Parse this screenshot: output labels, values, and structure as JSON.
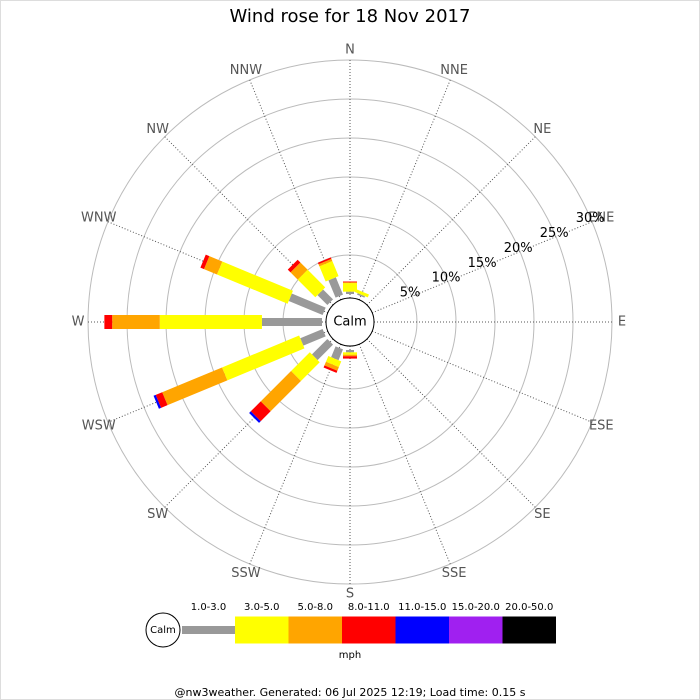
{
  "chart_data": {
    "type": "rose",
    "title": "Wind rose for 18 Nov 2017",
    "calm_label": "Calm",
    "directions": [
      "N",
      "NNE",
      "NE",
      "ENE",
      "E",
      "ESE",
      "SE",
      "SSE",
      "S",
      "SSW",
      "SW",
      "WSW",
      "W",
      "WNW",
      "NW",
      "NNW"
    ],
    "rlim": [
      0,
      30
    ],
    "rticks": [
      {
        "value": 5,
        "label": "5%"
      },
      {
        "value": 10,
        "label": "10%"
      },
      {
        "value": 15,
        "label": "15%"
      },
      {
        "value": 20,
        "label": "20%"
      },
      {
        "value": 25,
        "label": "25%"
      },
      {
        "value": 30,
        "label": "30%"
      }
    ],
    "series": [
      {
        "name": "1.0-3.0",
        "color": "#999999",
        "values": [
          0.3,
          0.2,
          0,
          0,
          0,
          0,
          0,
          0,
          0.3,
          1.5,
          2.8,
          3.1,
          7.7,
          4.7,
          1.8,
          2.4
        ]
      },
      {
        "name": "3.0-5.0",
        "color": "#ffff00",
        "values": [
          1.1,
          0.4,
          0,
          0,
          0,
          0,
          0,
          0,
          0.3,
          0.8,
          3.4,
          10.7,
          13.1,
          9.8,
          3.2,
          2.1
        ]
      },
      {
        "name": "5.0-8.0",
        "color": "#ffa500",
        "values": [
          0.1,
          0,
          0,
          0,
          0,
          0,
          0,
          0,
          0.2,
          0.5,
          5.5,
          8.3,
          6.1,
          1.8,
          1.3,
          0.3
        ]
      },
      {
        "name": "8.0-11.0",
        "color": "#ff0000",
        "values": [
          0.1,
          0,
          0,
          0,
          0,
          0,
          0,
          0,
          0.3,
          0.3,
          1.8,
          0.9,
          1.0,
          0.5,
          0.5,
          0.2
        ]
      },
      {
        "name": "11.0-15.0",
        "color": "#0000ff",
        "values": [
          0,
          0,
          0,
          0,
          0,
          0,
          0,
          0,
          0,
          0,
          0.3,
          0.3,
          0,
          0,
          0,
          0
        ]
      },
      {
        "name": "15.0-20.0",
        "color": "#a020f0",
        "values": [
          0,
          0,
          0,
          0,
          0,
          0,
          0,
          0,
          0,
          0,
          0,
          0,
          0,
          0,
          0,
          0
        ]
      },
      {
        "name": "20.0-50.0",
        "color": "#000000",
        "values": [
          0,
          0,
          0,
          0,
          0,
          0,
          0,
          0,
          0,
          0,
          0,
          0,
          0,
          0,
          0,
          0
        ]
      }
    ],
    "unit": "mph",
    "footer": "@nw3weather. Generated: 06 Jul 2025 12:19; Load time: 0.15 s"
  }
}
